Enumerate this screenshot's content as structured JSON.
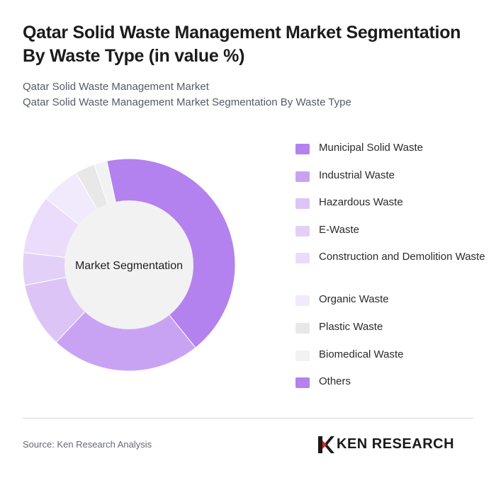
{
  "title": "Qatar Solid Waste Management Market Segmentation By Waste Type (in value %)",
  "subtitle_lines": [
    "Qatar Solid Waste Management Market",
    "Qatar Solid Waste Management Market Segmentation By Waste Type"
  ],
  "chart_data": {
    "type": "pie",
    "variant": "donut",
    "center_label": "Market Segmentation",
    "categories": [
      "Municipal Solid Waste",
      "Industrial Waste",
      "Hazardous Waste",
      "E-Waste",
      "Construction and Demolition Waste",
      "Organic Waste",
      "Plastic Waste",
      "Biomedical Waste",
      "Others"
    ],
    "values": [
      43,
      23,
      10,
      5,
      9,
      6,
      3,
      2,
      0
    ],
    "colors": [
      "#b382ee",
      "#c9a3f3",
      "#dcc4f7",
      "#e3d0f8",
      "#eadcfa",
      "#f1eafc",
      "#e8e8e8",
      "#f2f2f2",
      "#b382ee"
    ],
    "legend_position": "right"
  },
  "legend": {
    "items": [
      "Municipal Solid Waste",
      "Industrial Waste",
      "Hazardous Waste",
      "E-Waste",
      "Construction and Demolition Waste",
      "Organic Waste",
      "Plastic Waste",
      "Biomedical Waste",
      "Others"
    ]
  },
  "footer": {
    "source": "Source: Ken Research Analysis",
    "brand": "KEN RESEARCH",
    "brand_icon": "ken-research-logo-icon"
  }
}
